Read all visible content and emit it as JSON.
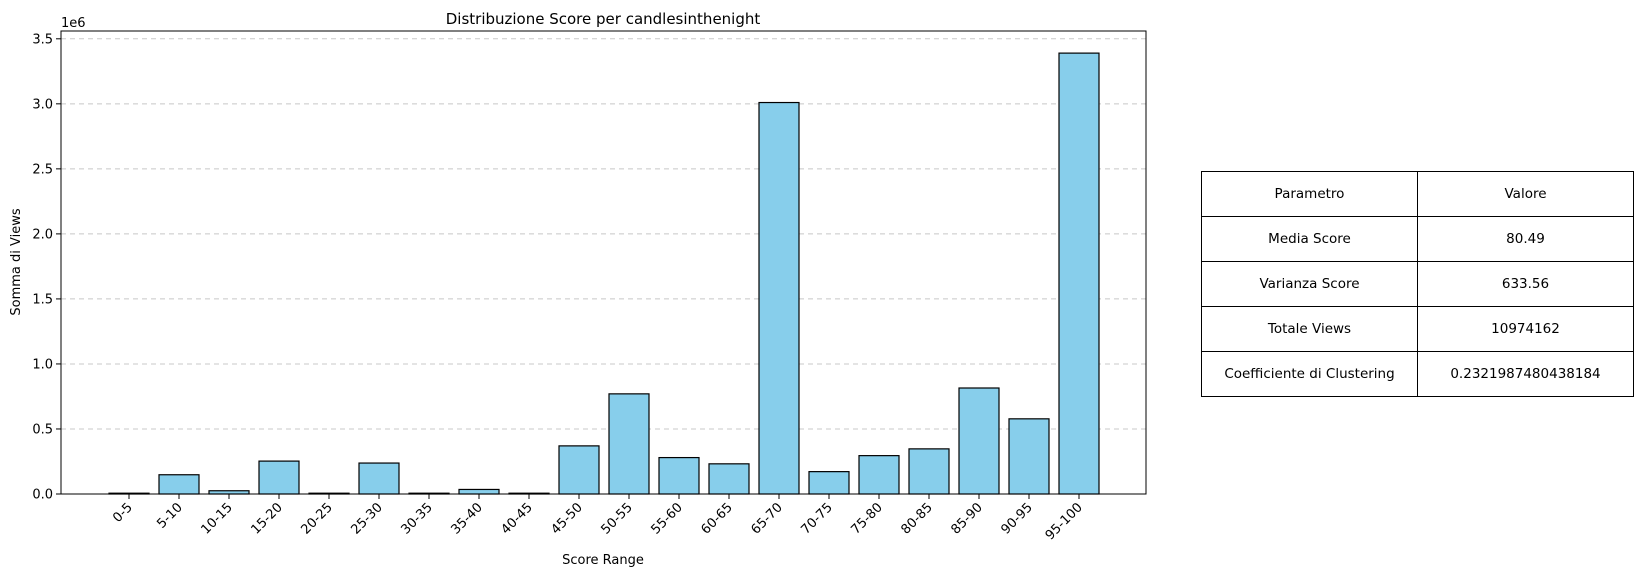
{
  "chart_data": {
    "type": "bar",
    "title": "Distribuzione Score per candlesinthenight",
    "xlabel": "Score Range",
    "ylabel": "Somma di Views",
    "y_scale_label": "1e6",
    "ylim": [
      0,
      3.56
    ],
    "y_ticks": [
      "0.0",
      "0.5",
      "1.0",
      "1.5",
      "2.0",
      "2.5",
      "3.0",
      "3.5"
    ],
    "grid": "y-dashed",
    "bar_color": "#87CEEB",
    "edge_color": "#000000",
    "categories": [
      "0-5",
      "5-10",
      "10-15",
      "15-20",
      "20-25",
      "25-30",
      "30-35",
      "35-40",
      "40-45",
      "45-50",
      "50-55",
      "55-60",
      "60-65",
      "65-70",
      "70-75",
      "75-80",
      "80-85",
      "85-90",
      "90-95",
      "95-100"
    ],
    "values": [
      0.0,
      0.148,
      0.025,
      0.253,
      0.0,
      0.238,
      0.0,
      0.035,
      0.0,
      0.37,
      0.77,
      0.28,
      0.232,
      3.01,
      0.172,
      0.295,
      0.347,
      0.815,
      0.578,
      3.39
    ]
  },
  "table": {
    "headers": [
      "Parametro",
      "Valore"
    ],
    "rows": [
      [
        "Media Score",
        "80.49"
      ],
      [
        "Varianza Score",
        "633.56"
      ],
      [
        "Totale Views",
        "10974162"
      ],
      [
        "Coefficiente di Clustering",
        "0.2321987480438184"
      ]
    ]
  }
}
